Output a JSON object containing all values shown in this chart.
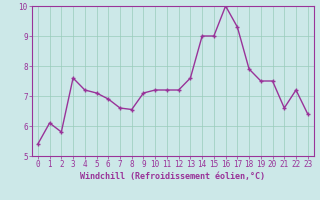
{
  "x": [
    0,
    1,
    2,
    3,
    4,
    5,
    6,
    7,
    8,
    9,
    10,
    11,
    12,
    13,
    14,
    15,
    16,
    17,
    18,
    19,
    20,
    21,
    22,
    23
  ],
  "y": [
    5.4,
    6.1,
    5.8,
    7.6,
    7.2,
    7.1,
    6.9,
    6.6,
    6.55,
    7.1,
    7.2,
    7.2,
    7.2,
    7.6,
    9.0,
    9.0,
    10.0,
    9.3,
    7.9,
    7.5,
    7.5,
    6.6,
    7.2,
    6.4
  ],
  "line_color": "#993399",
  "marker": "+",
  "marker_size": 3,
  "background_color": "#cce8e8",
  "grid_color": "#99ccbb",
  "xlabel": "Windchill (Refroidissement éolien,°C)",
  "xlabel_color": "#993399",
  "tick_color": "#993399",
  "spine_color": "#993399",
  "ylim": [
    5,
    10
  ],
  "xlim_min": -0.5,
  "xlim_max": 23.5,
  "yticks": [
    5,
    6,
    7,
    8,
    9,
    10
  ],
  "xticks": [
    0,
    1,
    2,
    3,
    4,
    5,
    6,
    7,
    8,
    9,
    10,
    11,
    12,
    13,
    14,
    15,
    16,
    17,
    18,
    19,
    20,
    21,
    22,
    23
  ],
  "linewidth": 1.0,
  "tick_fontsize": 5.5,
  "xlabel_fontsize": 6.0,
  "ylabel_fontsize": 6.0
}
